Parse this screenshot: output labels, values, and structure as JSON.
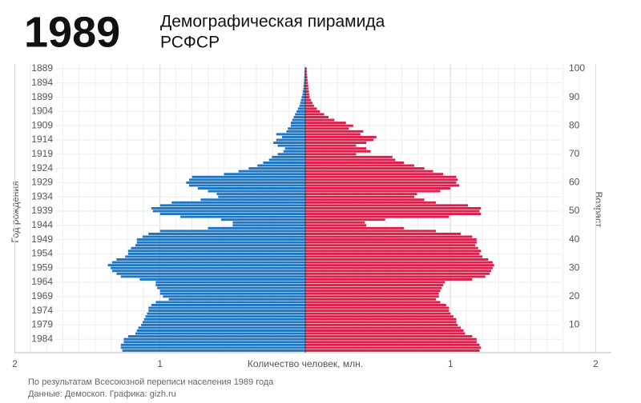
{
  "chart_data": {
    "type": "pyramid",
    "title": "1989",
    "subtitle": [
      "Демографическая пирамида",
      "РСФСР"
    ],
    "x_label": "Количество человек, млн.",
    "y_label": "Год рождения",
    "y2_label": "Возраст",
    "notes": [
      "По результатам Всесоюзной переписи населения 1989 года",
      "Данные: Демоскоп. Графика: gizh.ru"
    ],
    "xlim": [
      0,
      2
    ],
    "xticks": [
      1,
      2
    ],
    "y2lim": [
      100,
      1
    ],
    "y2ticks": [
      100,
      90,
      80,
      70,
      60,
      50,
      40,
      30,
      20,
      10
    ],
    "grid": true,
    "categories": [
      "1889",
      null,
      null,
      null,
      null,
      "1894",
      null,
      null,
      null,
      null,
      "1899",
      null,
      null,
      null,
      null,
      "1904",
      null,
      null,
      null,
      null,
      "1909",
      null,
      null,
      null,
      null,
      "1914",
      null,
      null,
      null,
      null,
      "1919",
      null,
      null,
      null,
      null,
      "1924",
      null,
      null,
      null,
      null,
      "1929",
      null,
      null,
      null,
      null,
      "1934",
      null,
      null,
      null,
      null,
      "1939",
      null,
      null,
      null,
      null,
      "1944",
      null,
      null,
      null,
      null,
      "1949",
      null,
      null,
      null,
      null,
      "1954",
      null,
      null,
      null,
      null,
      "1959",
      null,
      null,
      null,
      null,
      "1964",
      null,
      null,
      null,
      null,
      "1969",
      null,
      null,
      null,
      null,
      "1974",
      null,
      null,
      null,
      null,
      "1979",
      null,
      null,
      null,
      null,
      "1984",
      null,
      null,
      null,
      null
    ],
    "series": [
      {
        "color": "#1f77c4",
        "values": [
          0.004,
          0.005,
          0.006,
          0.007,
          0.008,
          0.01,
          0.012,
          0.014,
          0.017,
          0.02,
          0.025,
          0.03,
          0.035,
          0.04,
          0.05,
          0.06,
          0.07,
          0.08,
          0.09,
          0.1,
          0.1,
          0.12,
          0.13,
          0.2,
          0.16,
          0.2,
          0.22,
          0.19,
          0.14,
          0.15,
          0.19,
          0.23,
          0.25,
          0.29,
          0.33,
          0.39,
          0.46,
          0.56,
          0.78,
          0.8,
          0.82,
          0.8,
          0.74,
          0.67,
          0.61,
          0.6,
          0.72,
          0.92,
          1.0,
          1.06,
          1.05,
          1.0,
          0.86,
          0.58,
          0.5,
          0.5,
          0.67,
          1.0,
          1.08,
          1.12,
          1.16,
          1.16,
          1.17,
          1.2,
          1.22,
          1.22,
          1.24,
          1.3,
          1.33,
          1.36,
          1.34,
          1.33,
          1.3,
          1.27,
          1.14,
          1.03,
          1.03,
          1.02,
          1.0,
          1.0,
          0.98,
          0.94,
          1.03,
          1.06,
          1.08,
          1.08,
          1.09,
          1.1,
          1.11,
          1.12,
          1.13,
          1.15,
          1.16,
          1.17,
          1.22,
          1.25,
          1.25,
          1.27,
          1.27,
          1.26
        ]
      },
      {
        "color": "#dc1f4b",
        "values": [
          0.01,
          0.01,
          0.012,
          0.014,
          0.016,
          0.018,
          0.02,
          0.022,
          0.025,
          0.028,
          0.03,
          0.04,
          0.05,
          0.06,
          0.08,
          0.1,
          0.13,
          0.16,
          0.2,
          0.28,
          0.33,
          0.3,
          0.4,
          0.38,
          0.49,
          0.47,
          0.42,
          0.35,
          0.42,
          0.45,
          0.35,
          0.6,
          0.62,
          0.68,
          0.75,
          0.82,
          0.88,
          0.95,
          1.04,
          1.05,
          1.04,
          1.06,
          1.0,
          0.93,
          0.77,
          0.75,
          0.82,
          0.9,
          1.12,
          1.21,
          1.2,
          1.21,
          0.99,
          0.55,
          0.41,
          0.42,
          0.68,
          0.9,
          1.07,
          1.15,
          1.18,
          1.18,
          1.17,
          1.19,
          1.21,
          1.2,
          1.22,
          1.26,
          1.29,
          1.3,
          1.29,
          1.28,
          1.27,
          1.24,
          1.15,
          0.96,
          0.95,
          0.94,
          0.93,
          0.92,
          0.92,
          0.9,
          0.93,
          0.97,
          0.99,
          0.99,
          1.0,
          1.02,
          1.04,
          1.04,
          1.05,
          1.07,
          1.09,
          1.1,
          1.15,
          1.18,
          1.18,
          1.2,
          1.21,
          1.2
        ]
      }
    ]
  }
}
